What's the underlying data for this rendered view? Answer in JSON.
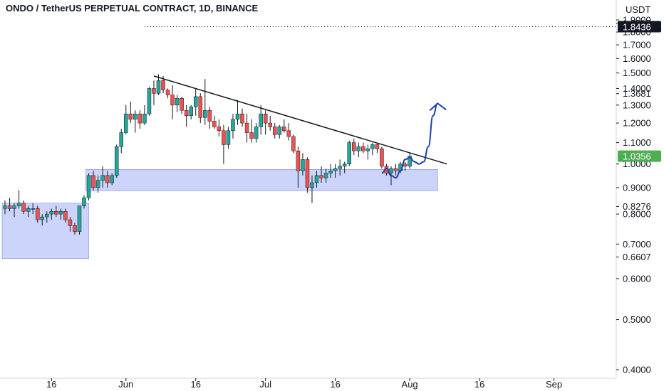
{
  "title": "ONDO / TetherUS PERPETUAL CONTRACT, 1D, BINANCE",
  "colors": {
    "up": "#26a69a",
    "down": "#ef5350",
    "zone": "#c3cdfb",
    "zone_border": "#7b8ad6",
    "price_badge_bg": "#4caf50",
    "high_badge_bg": "#131722",
    "projection": "#1e40af"
  },
  "chart_data": {
    "type": "candlestick",
    "symbol": "ONDO / TetherUS PERPETUAL CONTRACT",
    "interval": "1D",
    "exchange": "BINANCE",
    "currency": "USDT",
    "y_axis": {
      "scale": "log",
      "range": [
        0.38,
        2.0
      ],
      "ticks": [
        "1.9000",
        "1.8717",
        "1.8000",
        "1.7000",
        "1.6000",
        "1.5000",
        "1.4000",
        "1.3681",
        "1.3000",
        "1.2000",
        "1.1000",
        "1.0000",
        "0.9000",
        "0.8276",
        "0.8000",
        "0.7000",
        "0.6607",
        "0.6000",
        "0.5000",
        "0.4000"
      ]
    },
    "x_axis": {
      "range": [
        "2024-05-06",
        "2024-09-07"
      ],
      "ticks": [
        "16",
        "Jun",
        "16",
        "Jul",
        "16",
        "Aug",
        "16",
        "Sep"
      ]
    },
    "price_badges": {
      "current": "1.0356",
      "high_line": "1.8436"
    },
    "candles": [
      [
        "2024-05-06",
        0.82,
        0.85,
        0.8,
        0.83
      ],
      [
        "2024-05-07",
        0.83,
        0.86,
        0.81,
        0.82
      ],
      [
        "2024-05-08",
        0.82,
        0.84,
        0.79,
        0.83
      ],
      [
        "2024-05-09",
        0.83,
        0.89,
        0.82,
        0.84
      ],
      [
        "2024-05-10",
        0.84,
        0.85,
        0.8,
        0.81
      ],
      [
        "2024-05-11",
        0.81,
        0.83,
        0.79,
        0.82
      ],
      [
        "2024-05-12",
        0.82,
        0.84,
        0.8,
        0.82
      ],
      [
        "2024-05-13",
        0.82,
        0.83,
        0.77,
        0.78
      ],
      [
        "2024-05-14",
        0.78,
        0.8,
        0.76,
        0.79
      ],
      [
        "2024-05-15",
        0.79,
        0.81,
        0.77,
        0.8
      ],
      [
        "2024-05-16",
        0.8,
        0.82,
        0.78,
        0.81
      ],
      [
        "2024-05-17",
        0.81,
        0.83,
        0.79,
        0.8
      ],
      [
        "2024-05-18",
        0.8,
        0.82,
        0.78,
        0.81
      ],
      [
        "2024-05-19",
        0.81,
        0.82,
        0.77,
        0.78
      ],
      [
        "2024-05-20",
        0.78,
        0.79,
        0.74,
        0.76
      ],
      [
        "2024-05-21",
        0.76,
        0.77,
        0.73,
        0.74
      ],
      [
        "2024-05-22",
        0.74,
        0.83,
        0.73,
        0.83
      ],
      [
        "2024-05-23",
        0.83,
        0.87,
        0.82,
        0.86
      ],
      [
        "2024-05-24",
        0.86,
        0.96,
        0.85,
        0.95
      ],
      [
        "2024-05-25",
        0.95,
        0.97,
        0.89,
        0.9
      ],
      [
        "2024-05-26",
        0.9,
        0.95,
        0.88,
        0.93
      ],
      [
        "2024-05-27",
        0.93,
        0.99,
        0.9,
        0.95
      ],
      [
        "2024-05-28",
        0.95,
        0.97,
        0.9,
        0.92
      ],
      [
        "2024-05-29",
        0.92,
        0.96,
        0.91,
        0.95
      ],
      [
        "2024-05-30",
        0.95,
        1.09,
        0.94,
        1.08
      ],
      [
        "2024-05-31",
        1.08,
        1.17,
        1.05,
        1.15
      ],
      [
        "2024-06-01",
        1.15,
        1.3,
        1.14,
        1.25
      ],
      [
        "2024-06-02",
        1.25,
        1.32,
        1.2,
        1.22
      ],
      [
        "2024-06-03",
        1.22,
        1.27,
        1.15,
        1.25
      ],
      [
        "2024-06-04",
        1.25,
        1.27,
        1.17,
        1.2
      ],
      [
        "2024-06-05",
        1.2,
        1.3,
        1.19,
        1.25
      ],
      [
        "2024-06-06",
        1.25,
        1.41,
        1.24,
        1.4
      ],
      [
        "2024-06-07",
        1.4,
        1.45,
        1.3,
        1.37
      ],
      [
        "2024-06-08",
        1.37,
        1.49,
        1.36,
        1.45
      ],
      [
        "2024-06-09",
        1.45,
        1.48,
        1.37,
        1.39
      ],
      [
        "2024-06-10",
        1.39,
        1.4,
        1.34,
        1.36
      ],
      [
        "2024-06-11",
        1.36,
        1.42,
        1.22,
        1.3
      ],
      [
        "2024-06-12",
        1.3,
        1.36,
        1.26,
        1.34
      ],
      [
        "2024-06-13",
        1.34,
        1.35,
        1.25,
        1.27
      ],
      [
        "2024-06-14",
        1.27,
        1.3,
        1.18,
        1.24
      ],
      [
        "2024-06-15",
        1.24,
        1.3,
        1.22,
        1.29
      ],
      [
        "2024-06-16",
        1.29,
        1.4,
        1.24,
        1.35
      ],
      [
        "2024-06-17",
        1.35,
        1.37,
        1.2,
        1.23
      ],
      [
        "2024-06-18",
        1.23,
        1.46,
        1.19,
        1.27
      ],
      [
        "2024-06-19",
        1.27,
        1.29,
        1.17,
        1.21
      ],
      [
        "2024-06-20",
        1.21,
        1.24,
        1.17,
        1.18
      ],
      [
        "2024-06-21",
        1.18,
        1.22,
        1.13,
        1.16
      ],
      [
        "2024-06-22",
        1.16,
        1.19,
        1.0,
        1.09
      ],
      [
        "2024-06-23",
        1.09,
        1.18,
        1.07,
        1.16
      ],
      [
        "2024-06-24",
        1.16,
        1.25,
        1.12,
        1.22
      ],
      [
        "2024-06-25",
        1.22,
        1.33,
        1.19,
        1.25
      ],
      [
        "2024-06-26",
        1.25,
        1.28,
        1.18,
        1.2
      ],
      [
        "2024-06-27",
        1.2,
        1.25,
        1.1,
        1.15
      ],
      [
        "2024-06-28",
        1.15,
        1.22,
        1.1,
        1.12
      ],
      [
        "2024-06-29",
        1.12,
        1.2,
        1.1,
        1.18
      ],
      [
        "2024-06-30",
        1.18,
        1.3,
        1.14,
        1.25
      ],
      [
        "2024-07-01",
        1.25,
        1.27,
        1.14,
        1.2
      ],
      [
        "2024-07-02",
        1.2,
        1.24,
        1.16,
        1.18
      ],
      [
        "2024-07-03",
        1.18,
        1.2,
        1.12,
        1.14
      ],
      [
        "2024-07-04",
        1.14,
        1.19,
        1.12,
        1.18
      ],
      [
        "2024-07-05",
        1.18,
        1.22,
        1.15,
        1.16
      ],
      [
        "2024-07-06",
        1.16,
        1.2,
        1.11,
        1.13
      ],
      [
        "2024-07-07",
        1.13,
        1.14,
        1.05,
        1.06
      ],
      [
        "2024-07-08",
        1.06,
        1.08,
        0.9,
        0.97
      ],
      [
        "2024-07-09",
        0.97,
        1.05,
        0.95,
        1.02
      ],
      [
        "2024-07-10",
        1.02,
        1.03,
        0.88,
        0.9
      ],
      [
        "2024-07-11",
        0.9,
        0.95,
        0.84,
        0.92
      ],
      [
        "2024-07-12",
        0.92,
        0.97,
        0.9,
        0.95
      ],
      [
        "2024-07-13",
        0.95,
        0.99,
        0.92,
        0.94
      ],
      [
        "2024-07-14",
        0.94,
        0.98,
        0.92,
        0.96
      ],
      [
        "2024-07-15",
        0.96,
        1.0,
        0.94,
        0.97
      ],
      [
        "2024-07-16",
        0.97,
        1.0,
        0.94,
        0.98
      ],
      [
        "2024-07-17",
        0.98,
        1.02,
        0.95,
        0.99
      ],
      [
        "2024-07-18",
        0.99,
        1.01,
        0.96,
        1.0
      ],
      [
        "2024-07-19",
        1.0,
        1.11,
        0.99,
        1.1
      ],
      [
        "2024-07-20",
        1.1,
        1.12,
        1.04,
        1.06
      ],
      [
        "2024-07-21",
        1.06,
        1.1,
        1.03,
        1.08
      ],
      [
        "2024-07-22",
        1.08,
        1.1,
        1.05,
        1.06
      ],
      [
        "2024-07-23",
        1.06,
        1.09,
        1.02,
        1.07
      ],
      [
        "2024-07-24",
        1.07,
        1.1,
        1.04,
        1.09
      ],
      [
        "2024-07-25",
        1.09,
        1.1,
        1.05,
        1.07
      ],
      [
        "2024-07-26",
        1.07,
        1.08,
        0.98,
        0.99
      ],
      [
        "2024-07-27",
        0.99,
        1.0,
        0.95,
        0.96
      ],
      [
        "2024-07-28",
        0.96,
        0.99,
        0.91,
        0.98
      ],
      [
        "2024-07-29",
        0.98,
        1.0,
        0.95,
        0.97
      ],
      [
        "2024-07-30",
        0.97,
        1.01,
        0.96,
        1.0
      ],
      [
        "2024-07-31",
        1.0,
        1.01,
        0.97,
        0.99
      ],
      [
        "2024-08-01",
        0.99,
        1.05,
        0.98,
        1.0356
      ]
    ],
    "drawings": {
      "trendline": {
        "from": [
          "2024-06-07",
          1.48
        ],
        "to": [
          "2024-08-09",
          1.0
        ]
      },
      "zones": [
        {
          "from": "2024-05-06",
          "to": "2024-05-24",
          "top": 0.84,
          "bottom": 0.656
        },
        {
          "from": "2024-05-24",
          "to": "2024-08-07",
          "top": 0.976,
          "bottom": 0.888
        }
      ],
      "projection": [
        [
          "2024-07-26",
          0.96
        ],
        [
          "2024-07-27",
          0.98
        ],
        [
          "2024-07-28",
          0.95
        ],
        [
          "2024-07-29",
          0.94
        ],
        [
          "2024-07-30",
          0.97
        ],
        [
          "2024-07-31",
          1.02
        ],
        [
          "2024-08-01",
          1.03
        ],
        [
          "2024-08-02",
          1.01
        ],
        [
          "2024-08-03",
          1.0
        ],
        [
          "2024-08-04",
          1.01
        ],
        [
          "2024-08-05",
          1.08
        ],
        [
          "2024-08-06",
          1.24
        ],
        [
          "2024-08-07",
          1.31
        ]
      ]
    }
  }
}
